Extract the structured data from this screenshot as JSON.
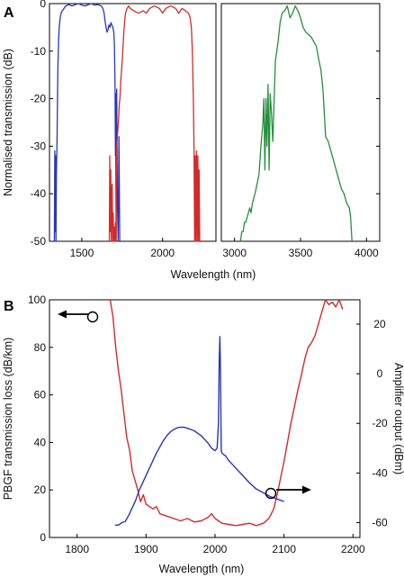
{
  "chart_data": [
    {
      "panel": "A",
      "type": "line",
      "ylabel": "Normalised transmission (dB)",
      "xlabel": "Wavelength (nm)",
      "ylim": [
        -50,
        0
      ],
      "yticks": [
        0,
        -10,
        -20,
        -30,
        -40,
        -50
      ],
      "left_axis": {
        "xlim": [
          1300,
          2330
        ],
        "xticks": [
          1500,
          2000
        ]
      },
      "right_axis": {
        "xlim": [
          2900,
          4100
        ],
        "xticks": [
          3000,
          3500,
          4000
        ]
      },
      "series": [
        {
          "color": "#2a36b8",
          "panel_side": "left",
          "x": [
            1330,
            1333,
            1336,
            1338,
            1340,
            1343,
            1346,
            1349,
            1352,
            1356,
            1360,
            1366,
            1372,
            1380,
            1390,
            1400,
            1420,
            1440,
            1460,
            1480,
            1500,
            1520,
            1540,
            1560,
            1580,
            1600,
            1620,
            1630,
            1638,
            1645,
            1650,
            1656,
            1662,
            1668,
            1674,
            1680,
            1686,
            1692,
            1698,
            1702,
            1706,
            1708,
            1710,
            1712,
            1716,
            1720,
            1725,
            1730,
            1735
          ],
          "y": [
            -50,
            -31,
            -48,
            -32,
            -50,
            -36,
            -30,
            -22,
            -14,
            -8,
            -5,
            -3,
            -2,
            -1.5,
            -1,
            -0.5,
            -0.2,
            -0.5,
            -0.2,
            0,
            -0.3,
            -0.5,
            -0.2,
            0,
            -0.3,
            -0.2,
            -0.5,
            -1,
            -2,
            -4,
            -5,
            -6,
            -5.5,
            -4.5,
            -5,
            -4,
            -4.5,
            -5,
            -6,
            -9,
            -18,
            -32,
            -19,
            -50,
            -18,
            -40,
            -50,
            -28,
            -50
          ]
        },
        {
          "color": "#d42a2a",
          "panel_side": "left",
          "x": [
            1670,
            1673,
            1676,
            1679,
            1682,
            1685,
            1688,
            1691,
            1694,
            1697,
            1700,
            1704,
            1708,
            1712,
            1716,
            1720,
            1724,
            1728,
            1732,
            1736,
            1740,
            1746,
            1752,
            1760,
            1770,
            1780,
            1790,
            1800,
            1820,
            1850,
            1880,
            1900,
            1920,
            1950,
            1980,
            2000,
            2020,
            2050,
            2080,
            2100,
            2120,
            2140,
            2160,
            2170,
            2178,
            2184,
            2190,
            2194,
            2198,
            2202,
            2206,
            2210,
            2214,
            2218,
            2222,
            2226,
            2230
          ],
          "y": [
            -50,
            -32,
            -48,
            -35,
            -50,
            -40,
            -38,
            -50,
            -44,
            -50,
            -47,
            -50,
            -46,
            -50,
            -30,
            -28,
            -26,
            -24,
            -21,
            -20,
            -17,
            -14,
            -11,
            -6,
            -2,
            -1,
            -0.5,
            -1,
            -1.5,
            -2,
            -1.5,
            -2,
            -1,
            -0.5,
            -1,
            -2,
            -1,
            -0.5,
            -1,
            -2,
            -1,
            -1.5,
            -2,
            -3,
            -5,
            -10,
            -20,
            -30,
            -50,
            -32,
            -50,
            -31,
            -50,
            -32,
            -50,
            -35,
            -50
          ]
        },
        {
          "color": "#248f3c",
          "panel_side": "right",
          "x": [
            3045,
            3055,
            3065,
            3075,
            3085,
            3095,
            3105,
            3115,
            3125,
            3135,
            3145,
            3155,
            3170,
            3185,
            3200,
            3215,
            3222,
            3230,
            3238,
            3246,
            3254,
            3262,
            3270,
            3280,
            3290,
            3300,
            3310,
            3320,
            3330,
            3345,
            3360,
            3380,
            3400,
            3420,
            3440,
            3460,
            3480,
            3500,
            3520,
            3540,
            3560,
            3580,
            3600,
            3620,
            3640,
            3655,
            3670,
            3690,
            3710,
            3730,
            3750,
            3770,
            3790,
            3810,
            3830,
            3850,
            3870,
            3880,
            3890
          ],
          "y": [
            -50,
            -48,
            -48,
            -46,
            -46,
            -45,
            -44,
            -43,
            -44,
            -42,
            -41,
            -40,
            -38,
            -36,
            -30,
            -25,
            -20,
            -35,
            -20,
            -30,
            -17,
            -35,
            -19,
            -23,
            -29,
            -20,
            -12,
            -10,
            -8,
            -4,
            -2,
            -1.5,
            -0.5,
            -3,
            -2,
            -0.5,
            -1.5,
            -3,
            -5,
            -6,
            -6.5,
            -7,
            -8,
            -9,
            -12,
            -14,
            -18,
            -28,
            -29,
            -31,
            -33,
            -35,
            -37,
            -39,
            -40,
            -42,
            -43,
            -45,
            -50
          ]
        }
      ]
    },
    {
      "panel": "B",
      "type": "line",
      "xlabel": "Wavelength (nm)",
      "ylabel": "PBGF transmission loss (dB/km)",
      "y2label": "Amplifier output (dBm)",
      "xlim": [
        1760,
        2210
      ],
      "xticks": [
        1800,
        1900,
        2000,
        2100,
        2200
      ],
      "ylim": [
        0,
        100
      ],
      "yticks": [
        0,
        20,
        40,
        60,
        80,
        100
      ],
      "y2lim": [
        -66,
        29.8
      ],
      "y2ticks": [
        20,
        0,
        -20,
        -40,
        -60
      ],
      "series": [
        {
          "color": "#d42a2a",
          "axis": "left",
          "x": [
            1848,
            1852,
            1856,
            1860,
            1864,
            1868,
            1872,
            1876,
            1880,
            1884,
            1888,
            1892,
            1896,
            1900,
            1905,
            1910,
            1915,
            1920,
            1930,
            1940,
            1950,
            1960,
            1970,
            1980,
            1990,
            1995,
            2000,
            2005,
            2010,
            2020,
            2030,
            2040,
            2050,
            2060,
            2070,
            2078,
            2085,
            2090,
            2095,
            2100,
            2105,
            2110,
            2115,
            2120,
            2125,
            2130,
            2135,
            2140,
            2145,
            2150,
            2155,
            2160,
            2165,
            2170,
            2175,
            2180,
            2185
          ],
          "y": [
            100,
            93,
            80,
            70,
            62,
            52,
            42,
            37,
            28,
            24,
            20,
            15,
            18,
            14,
            13,
            12,
            13,
            10,
            9,
            8,
            7,
            8,
            6.5,
            7,
            8.5,
            10,
            8,
            7,
            6,
            5.5,
            5,
            5.5,
            6,
            5,
            6,
            8,
            12,
            18,
            25,
            32,
            40,
            48,
            55,
            62,
            68,
            75,
            80,
            82,
            85,
            90,
            95,
            100,
            98,
            99,
            97,
            100,
            96
          ]
        },
        {
          "color": "#2a36b8",
          "axis": "right",
          "x": [
            1855,
            1860,
            1865,
            1870,
            1875,
            1880,
            1885,
            1890,
            1895,
            1900,
            1905,
            1910,
            1915,
            1920,
            1925,
            1930,
            1935,
            1940,
            1945,
            1950,
            1955,
            1960,
            1965,
            1970,
            1975,
            1980,
            1985,
            1990,
            1995,
            2000,
            2003,
            2005,
            2006,
            2007,
            2008,
            2009,
            2010,
            2012,
            2015,
            2020,
            2030,
            2040,
            2050,
            2060,
            2070,
            2080,
            2090,
            2100
          ],
          "y": [
            -61,
            -61,
            -60,
            -59.5,
            -57,
            -54,
            -51,
            -47,
            -44,
            -41,
            -38,
            -35,
            -32,
            -29.5,
            -27,
            -25,
            -23.5,
            -22.5,
            -21.8,
            -21.5,
            -21.6,
            -22,
            -22.5,
            -23,
            -24,
            -25,
            -26.5,
            -28,
            -30,
            -31,
            -30,
            -20,
            5,
            15,
            0,
            -31,
            -32,
            -32.5,
            -33,
            -35,
            -38,
            -41,
            -44,
            -46.5,
            -48,
            -49.5,
            -50.5,
            -51.5
          ]
        }
      ]
    }
  ],
  "panelA": {
    "letter": "A",
    "ylabel": "Normalised transmission (dB)",
    "xlabel": "Wavelength (nm)",
    "ytick_labels": [
      "0",
      "-10",
      "-20",
      "-30",
      "-40",
      "-50"
    ],
    "xtick_labels_left": [
      "1500",
      "2000"
    ],
    "xtick_labels_right": [
      "3000",
      "3500",
      "4000"
    ]
  },
  "panelB": {
    "letter": "B",
    "ylabel": "PBGF transmission loss (dB/km)",
    "y2label": "Amplifier output (dBm)",
    "xlabel": "Wavelength (nm)",
    "ytick_labels": [
      "0",
      "20",
      "40",
      "60",
      "80",
      "100"
    ],
    "y2tick_labels": [
      "20",
      "0",
      "-20",
      "-40",
      "-60"
    ],
    "xtick_labels": [
      "1800",
      "1900",
      "2000",
      "2100",
      "2200"
    ]
  }
}
